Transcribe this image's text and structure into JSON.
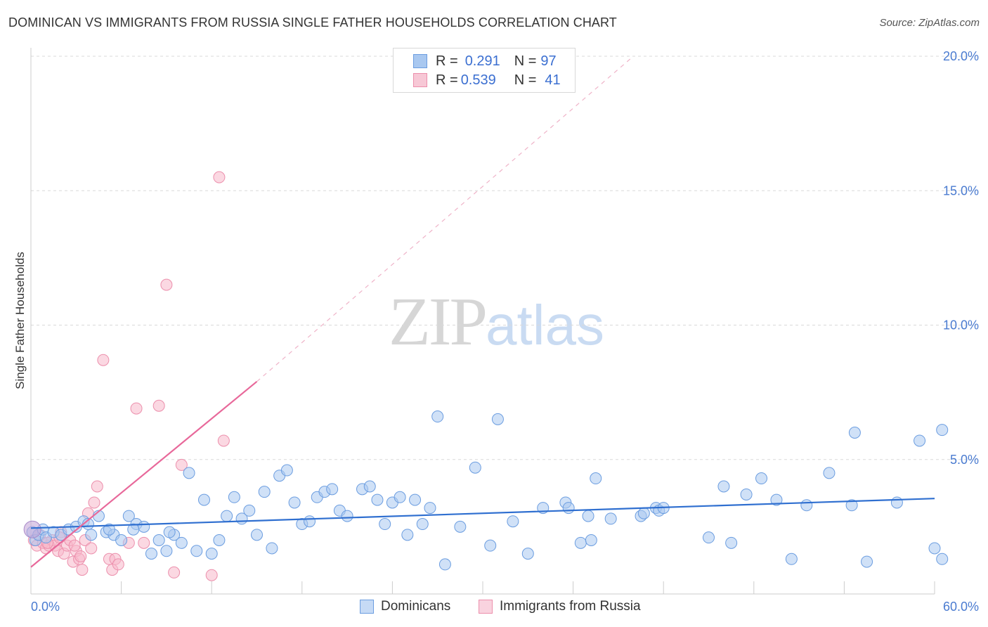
{
  "header": {
    "title": "DOMINICAN VS IMMIGRANTS FROM RUSSIA SINGLE FATHER HOUSEHOLDS CORRELATION CHART",
    "source": "Source: ZipAtlas.com"
  },
  "legend": {
    "series1": {
      "r_label": "R = ",
      "r_value": "0.291",
      "n_label": "N = ",
      "n_value": "97"
    },
    "series2": {
      "r_label": "R = ",
      "r_value": "0.539",
      "n_label": "N = ",
      "n_value": "41"
    }
  },
  "watermark": {
    "zip": "ZIP",
    "atlas": "atlas"
  },
  "colors": {
    "blue_fill": "#a9c8f0",
    "blue_stroke": "#6b9de0",
    "blue_line": "#2f6fd0",
    "pink_fill": "#f7b8cb",
    "pink_stroke": "#ec8fac",
    "pink_line": "#e8689a",
    "grid": "#d9d9d9",
    "axis_text": "#4a7bd0"
  },
  "chart_data": {
    "type": "scatter",
    "title": "DOMINICAN VS IMMIGRANTS FROM RUSSIA SINGLE FATHER HOUSEHOLDS CORRELATION CHART",
    "xlabel": "",
    "ylabel": "Single Father Households",
    "xlim": [
      0,
      60
    ],
    "ylim": [
      0,
      20
    ],
    "x_tick_labels": [
      "0.0%",
      "60.0%"
    ],
    "y_ticks": [
      5,
      10,
      15,
      20
    ],
    "y_tick_labels": [
      "5.0%",
      "10.0%",
      "15.0%",
      "20.0%"
    ],
    "grid": true,
    "series": [
      {
        "name": "Dominicans",
        "r": 0.291,
        "n": 97,
        "trend": {
          "x0": 0,
          "y0": 2.45,
          "x1": 60,
          "y1": 3.55
        },
        "points": [
          [
            0.1,
            2.3
          ],
          [
            0.3,
            2.0
          ],
          [
            0.5,
            2.2
          ],
          [
            0.8,
            2.4
          ],
          [
            1.0,
            2.1
          ],
          [
            1.5,
            2.3
          ],
          [
            2.0,
            2.2
          ],
          [
            2.5,
            2.4
          ],
          [
            3.0,
            2.5
          ],
          [
            3.5,
            2.7
          ],
          [
            4.0,
            2.2
          ],
          [
            4.5,
            2.9
          ],
          [
            5.0,
            2.3
          ],
          [
            5.5,
            2.2
          ],
          [
            6.0,
            2.0
          ],
          [
            6.5,
            2.9
          ],
          [
            7.0,
            2.6
          ],
          [
            7.5,
            2.5
          ],
          [
            8.0,
            1.5
          ],
          [
            8.5,
            2.0
          ],
          [
            9.0,
            1.6
          ],
          [
            9.5,
            2.2
          ],
          [
            10.0,
            1.9
          ],
          [
            10.5,
            4.5
          ],
          [
            11.0,
            1.6
          ],
          [
            11.5,
            3.5
          ],
          [
            12.0,
            1.5
          ],
          [
            12.5,
            2.0
          ],
          [
            13.0,
            2.9
          ],
          [
            13.5,
            3.6
          ],
          [
            14.0,
            2.8
          ],
          [
            14.5,
            3.1
          ],
          [
            15.0,
            2.2
          ],
          [
            15.5,
            3.8
          ],
          [
            16.0,
            1.7
          ],
          [
            16.5,
            4.4
          ],
          [
            17.0,
            4.6
          ],
          [
            17.5,
            3.4
          ],
          [
            18.0,
            2.6
          ],
          [
            18.5,
            2.7
          ],
          [
            19.0,
            3.6
          ],
          [
            19.5,
            3.8
          ],
          [
            20.0,
            3.9
          ],
          [
            20.5,
            3.1
          ],
          [
            21.0,
            2.9
          ],
          [
            22.0,
            3.9
          ],
          [
            22.5,
            4.0
          ],
          [
            23.0,
            3.5
          ],
          [
            23.5,
            2.6
          ],
          [
            24.0,
            3.4
          ],
          [
            24.5,
            3.6
          ],
          [
            25.0,
            2.2
          ],
          [
            25.5,
            3.5
          ],
          [
            26.0,
            2.6
          ],
          [
            26.5,
            3.2
          ],
          [
            27.0,
            6.6
          ],
          [
            27.5,
            1.1
          ],
          [
            28.5,
            2.5
          ],
          [
            29.5,
            4.7
          ],
          [
            30.5,
            1.8
          ],
          [
            31.0,
            6.5
          ],
          [
            32.0,
            2.7
          ],
          [
            33.0,
            1.5
          ],
          [
            34.0,
            3.2
          ],
          [
            35.5,
            3.4
          ],
          [
            35.7,
            3.2
          ],
          [
            36.5,
            1.9
          ],
          [
            37.0,
            2.9
          ],
          [
            37.2,
            2.0
          ],
          [
            37.5,
            4.3
          ],
          [
            38.5,
            2.8
          ],
          [
            40.5,
            2.9
          ],
          [
            40.7,
            3.0
          ],
          [
            41.5,
            3.2
          ],
          [
            41.7,
            3.1
          ],
          [
            42.0,
            3.2
          ],
          [
            45.0,
            2.1
          ],
          [
            46.0,
            4.0
          ],
          [
            46.5,
            1.9
          ],
          [
            47.5,
            3.7
          ],
          [
            48.5,
            4.3
          ],
          [
            49.5,
            3.5
          ],
          [
            50.5,
            1.3
          ],
          [
            51.5,
            3.3
          ],
          [
            53.0,
            4.5
          ],
          [
            54.5,
            3.3
          ],
          [
            54.7,
            6.0
          ],
          [
            55.5,
            1.2
          ],
          [
            57.5,
            3.4
          ],
          [
            59.0,
            5.7
          ],
          [
            60.0,
            1.7
          ],
          [
            60.5,
            1.3
          ],
          [
            62.5,
            6.1
          ],
          [
            3.8,
            2.6
          ],
          [
            5.2,
            2.4
          ],
          [
            6.8,
            2.4
          ],
          [
            9.2,
            2.3
          ]
        ]
      },
      {
        "name": "Immigrants from Russia",
        "r": 0.539,
        "n": 41,
        "trend": {
          "x0": 0,
          "y0": 1.0,
          "x1": 15,
          "y1": 7.9
        },
        "trend_extension": {
          "x0": 15,
          "y0": 7.9,
          "x1": 40,
          "y1": 20
        },
        "points": [
          [
            0.2,
            2.0
          ],
          [
            0.4,
            1.8
          ],
          [
            0.6,
            2.2
          ],
          [
            0.8,
            1.9
          ],
          [
            1.0,
            1.7
          ],
          [
            1.2,
            1.8
          ],
          [
            1.4,
            2.0
          ],
          [
            1.6,
            1.8
          ],
          [
            1.8,
            1.6
          ],
          [
            2.0,
            2.3
          ],
          [
            2.2,
            1.5
          ],
          [
            2.4,
            1.8
          ],
          [
            2.6,
            2.0
          ],
          [
            2.8,
            1.2
          ],
          [
            3.0,
            1.6
          ],
          [
            3.2,
            1.3
          ],
          [
            3.4,
            0.9
          ],
          [
            3.6,
            2.0
          ],
          [
            3.8,
            3.0
          ],
          [
            4.0,
            1.7
          ],
          [
            4.2,
            3.4
          ],
          [
            4.4,
            4.0
          ],
          [
            4.8,
            8.7
          ],
          [
            5.2,
            1.3
          ],
          [
            5.4,
            0.9
          ],
          [
            5.6,
            1.3
          ],
          [
            5.8,
            1.1
          ],
          [
            6.5,
            1.9
          ],
          [
            7.0,
            6.9
          ],
          [
            7.5,
            1.9
          ],
          [
            8.5,
            7.0
          ],
          [
            9.0,
            11.5
          ],
          [
            9.5,
            0.8
          ],
          [
            10.0,
            4.8
          ],
          [
            12.0,
            0.7
          ],
          [
            12.5,
            15.5
          ],
          [
            12.8,
            5.7
          ],
          [
            1.1,
            1.9
          ],
          [
            1.9,
            2.1
          ],
          [
            2.9,
            1.8
          ],
          [
            3.3,
            1.4
          ]
        ]
      }
    ]
  },
  "bottom_legend": {
    "item1": "Dominicans",
    "item2": "Immigrants from Russia"
  }
}
